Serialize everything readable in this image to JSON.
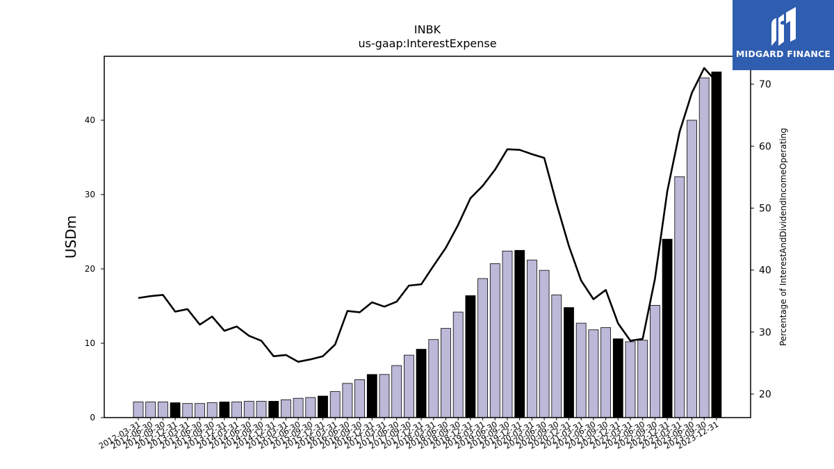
{
  "chart_data": {
    "type": "bar",
    "title": "INBK",
    "subtitle": "us-gaap:InterestExpense",
    "ylabel": "USDm",
    "y2label": "Percentage of InterestAndDividendIncomeOperating",
    "ylim": [
      0,
      48.6
    ],
    "y2lim": [
      16.2,
      74.5
    ],
    "yticks": [
      0,
      10,
      20,
      30,
      40
    ],
    "y2ticks": [
      20,
      30,
      40,
      50,
      60,
      70
    ],
    "categories": [
      "2012-03-31",
      "2012-06-30",
      "2012-09-30",
      "2012-12-31",
      "2013-03-31",
      "2013-06-30",
      "2013-09-30",
      "2013-12-31",
      "2014-03-31",
      "2014-06-30",
      "2014-09-30",
      "2014-12-31",
      "2015-03-31",
      "2015-06-30",
      "2015-09-30",
      "2015-12-31",
      "2016-03-31",
      "2016-06-30",
      "2016-09-30",
      "2016-12-31",
      "2017-03-31",
      "2017-06-30",
      "2017-09-30",
      "2017-12-31",
      "2018-03-31",
      "2018-06-30",
      "2018-09-30",
      "2018-12-31",
      "2019-03-31",
      "2019-06-30",
      "2019-09-30",
      "2019-12-31",
      "2020-03-31",
      "2020-06-30",
      "2020-09-30",
      "2020-12-31",
      "2021-03-31",
      "2021-06-30",
      "2021-09-30",
      "2021-12-31",
      "2022-03-31",
      "2022-06-30",
      "2022-09-30",
      "2022-12-31",
      "2023-03-31",
      "2023-06-30",
      "2023-09-30",
      "2023-12-31"
    ],
    "series": [
      {
        "type": "bar",
        "axis": "left",
        "values": [
          2.1,
          2.1,
          2.1,
          2.0,
          1.9,
          1.9,
          2.0,
          2.1,
          2.1,
          2.2,
          2.2,
          2.2,
          2.4,
          2.6,
          2.7,
          2.9,
          3.5,
          4.6,
          5.1,
          5.8,
          5.8,
          7.0,
          8.4,
          9.2,
          10.5,
          12.0,
          14.2,
          16.4,
          18.7,
          20.7,
          22.4,
          22.5,
          21.2,
          19.8,
          16.5,
          14.8,
          12.7,
          11.8,
          12.1,
          10.6,
          10.2,
          10.4,
          15.1,
          24.0,
          32.4,
          40.0,
          45.7,
          46.5
        ],
        "colors": {
          "default": "#bcb8d8",
          "year_end": "#000000"
        }
      },
      {
        "type": "line",
        "axis": "right",
        "color": "#000000",
        "values": [
          35.5,
          35.8,
          36.0,
          33.3,
          33.7,
          31.2,
          32.5,
          30.2,
          30.9,
          29.4,
          28.6,
          26.1,
          26.3,
          25.2,
          25.6,
          26.1,
          28.0,
          33.4,
          33.2,
          34.8,
          34.1,
          34.9,
          37.5,
          37.7,
          40.7,
          43.6,
          47.3,
          51.6,
          53.6,
          56.2,
          59.5,
          59.4,
          58.7,
          58.1,
          50.7,
          43.9,
          38.3,
          35.3,
          36.8,
          31.4,
          28.6,
          28.9,
          38.6,
          52.7,
          62.3,
          68.6,
          72.6,
          70.4
        ]
      }
    ],
    "grid": false,
    "legend": "none"
  },
  "logo": {
    "text": "MIDGARD FINANCE",
    "color": "#2f5db0"
  }
}
